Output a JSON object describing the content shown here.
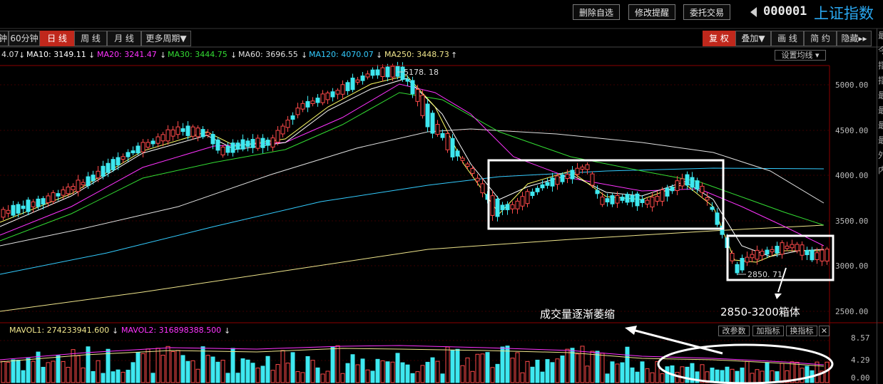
{
  "toolbar": {
    "buttons": [
      "删除自选",
      "修改提醒",
      "委托交易"
    ],
    "code": "000001",
    "index_name": "上证指数"
  },
  "period_tabs": [
    "60分钟",
    "日 线",
    "周 线",
    "月 线",
    "更多周期▼"
  ],
  "period_tab_partial": "钟",
  "right_tabs": [
    "复 权",
    "叠加▼",
    "画 线",
    "简 约",
    "隐藏▸▸"
  ],
  "ma_legend": [
    {
      "label": "4.07",
      "color": "#e0e0e0"
    },
    {
      "label": "MA10: 3149.11",
      "color": "#ffffff"
    },
    {
      "label": "MA20: 3241.47",
      "color": "#ff33ff"
    },
    {
      "label": "MA30: 3444.75",
      "color": "#33dd33"
    },
    {
      "label": "MA60: 3696.55",
      "color": "#e0e0e0"
    },
    {
      "label": "MA120: 4070.07",
      "color": "#33ccff"
    },
    {
      "label": "MA250: 3448.73",
      "color": "#f0e68c"
    }
  ],
  "ma_settings_label": "设置均线",
  "price_axis": [
    "5000.00",
    "4500.00",
    "4000.00",
    "3500.00",
    "3000.00",
    "2500.00"
  ],
  "annotations": {
    "high_label": "5178. 18",
    "low_label": "2850. 71",
    "box_label": "2850-3200箱体",
    "volume_label": "成交量逐渐萎缩"
  },
  "volume_legend": {
    "mavol1": "MAVOL1: 274233941.600",
    "mavol2": "MAVOL2: 316898388.500"
  },
  "volume_buttons": [
    "改参数",
    "加指标",
    "换指标",
    "✕"
  ],
  "volume_axis": [
    "8.57",
    "4.29",
    "0.00"
  ],
  "sidebar_chars": "最今指指最最最最外内"
}
